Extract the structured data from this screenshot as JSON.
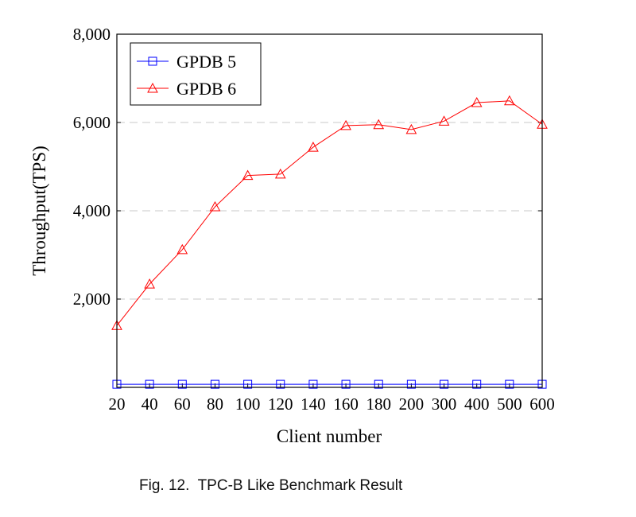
{
  "chart_data": {
    "type": "line",
    "title": "",
    "xlabel": "Client number",
    "ylabel": "Throughput(TPS)",
    "categories": [
      "20",
      "40",
      "60",
      "80",
      "100",
      "120",
      "140",
      "160",
      "180",
      "200",
      "300",
      "400",
      "500",
      "600"
    ],
    "ylim": [
      0,
      8000
    ],
    "yticks": [
      2000,
      4000,
      6000,
      8000
    ],
    "ytick_labels": [
      "2,000",
      "4,000",
      "6,000",
      "8,000"
    ],
    "grid": "horizontal dashed",
    "legend_position": "top-left",
    "series": [
      {
        "name": "GPDB 5",
        "color": "#0000ff",
        "marker": "square",
        "values": [
          70,
          70,
          70,
          70,
          70,
          70,
          70,
          70,
          70,
          70,
          70,
          70,
          70,
          70
        ]
      },
      {
        "name": "GPDB 6",
        "color": "#ff0000",
        "marker": "triangle",
        "values": [
          1400,
          2340,
          3120,
          4090,
          4800,
          4830,
          5440,
          5930,
          5950,
          5840,
          6030,
          6450,
          6490,
          5960
        ]
      }
    ]
  },
  "caption": "Fig. 12.  TPC-B Like Benchmark Result"
}
